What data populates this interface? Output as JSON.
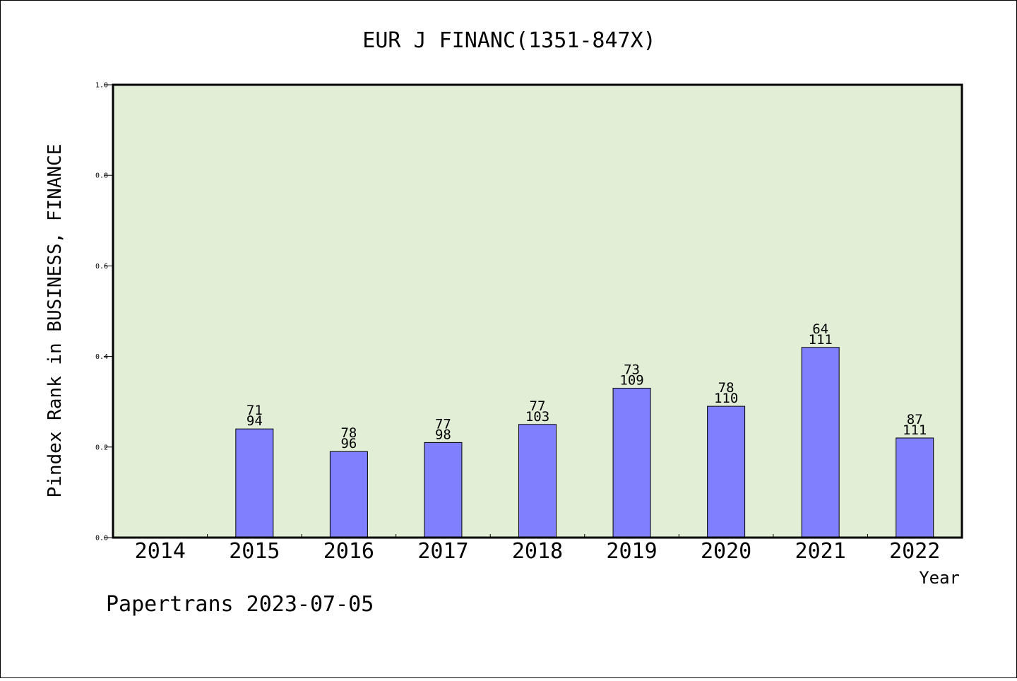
{
  "chart_data": {
    "type": "bar",
    "title": "EUR J FINANC(1351-847X)",
    "xlabel": "Year",
    "ylabel": "Pindex Rank in BUSINESS, FINANCE",
    "ylim": [
      0,
      1.0
    ],
    "yticks": [
      "0.0",
      "0.2",
      "0.4",
      "0.6",
      "0.8",
      "1.0"
    ],
    "categories": [
      "2014",
      "2015",
      "2016",
      "2017",
      "2018",
      "2019",
      "2020",
      "2021",
      "2022"
    ],
    "values": [
      null,
      0.24,
      0.19,
      0.21,
      0.25,
      0.33,
      0.29,
      0.42,
      0.22
    ],
    "rank_labels": [
      "",
      "71",
      "78",
      "77",
      "77",
      "73",
      "78",
      "64",
      "87"
    ],
    "total_labels": [
      "",
      "94",
      "96",
      "98",
      "103",
      "109",
      "110",
      "111",
      "111"
    ],
    "grid": false,
    "colors": {
      "plot_bg": "#e2efd6",
      "bar": "#8080ff",
      "bar_edge": "#000000"
    }
  },
  "footer": "Papertrans 2023-07-05"
}
